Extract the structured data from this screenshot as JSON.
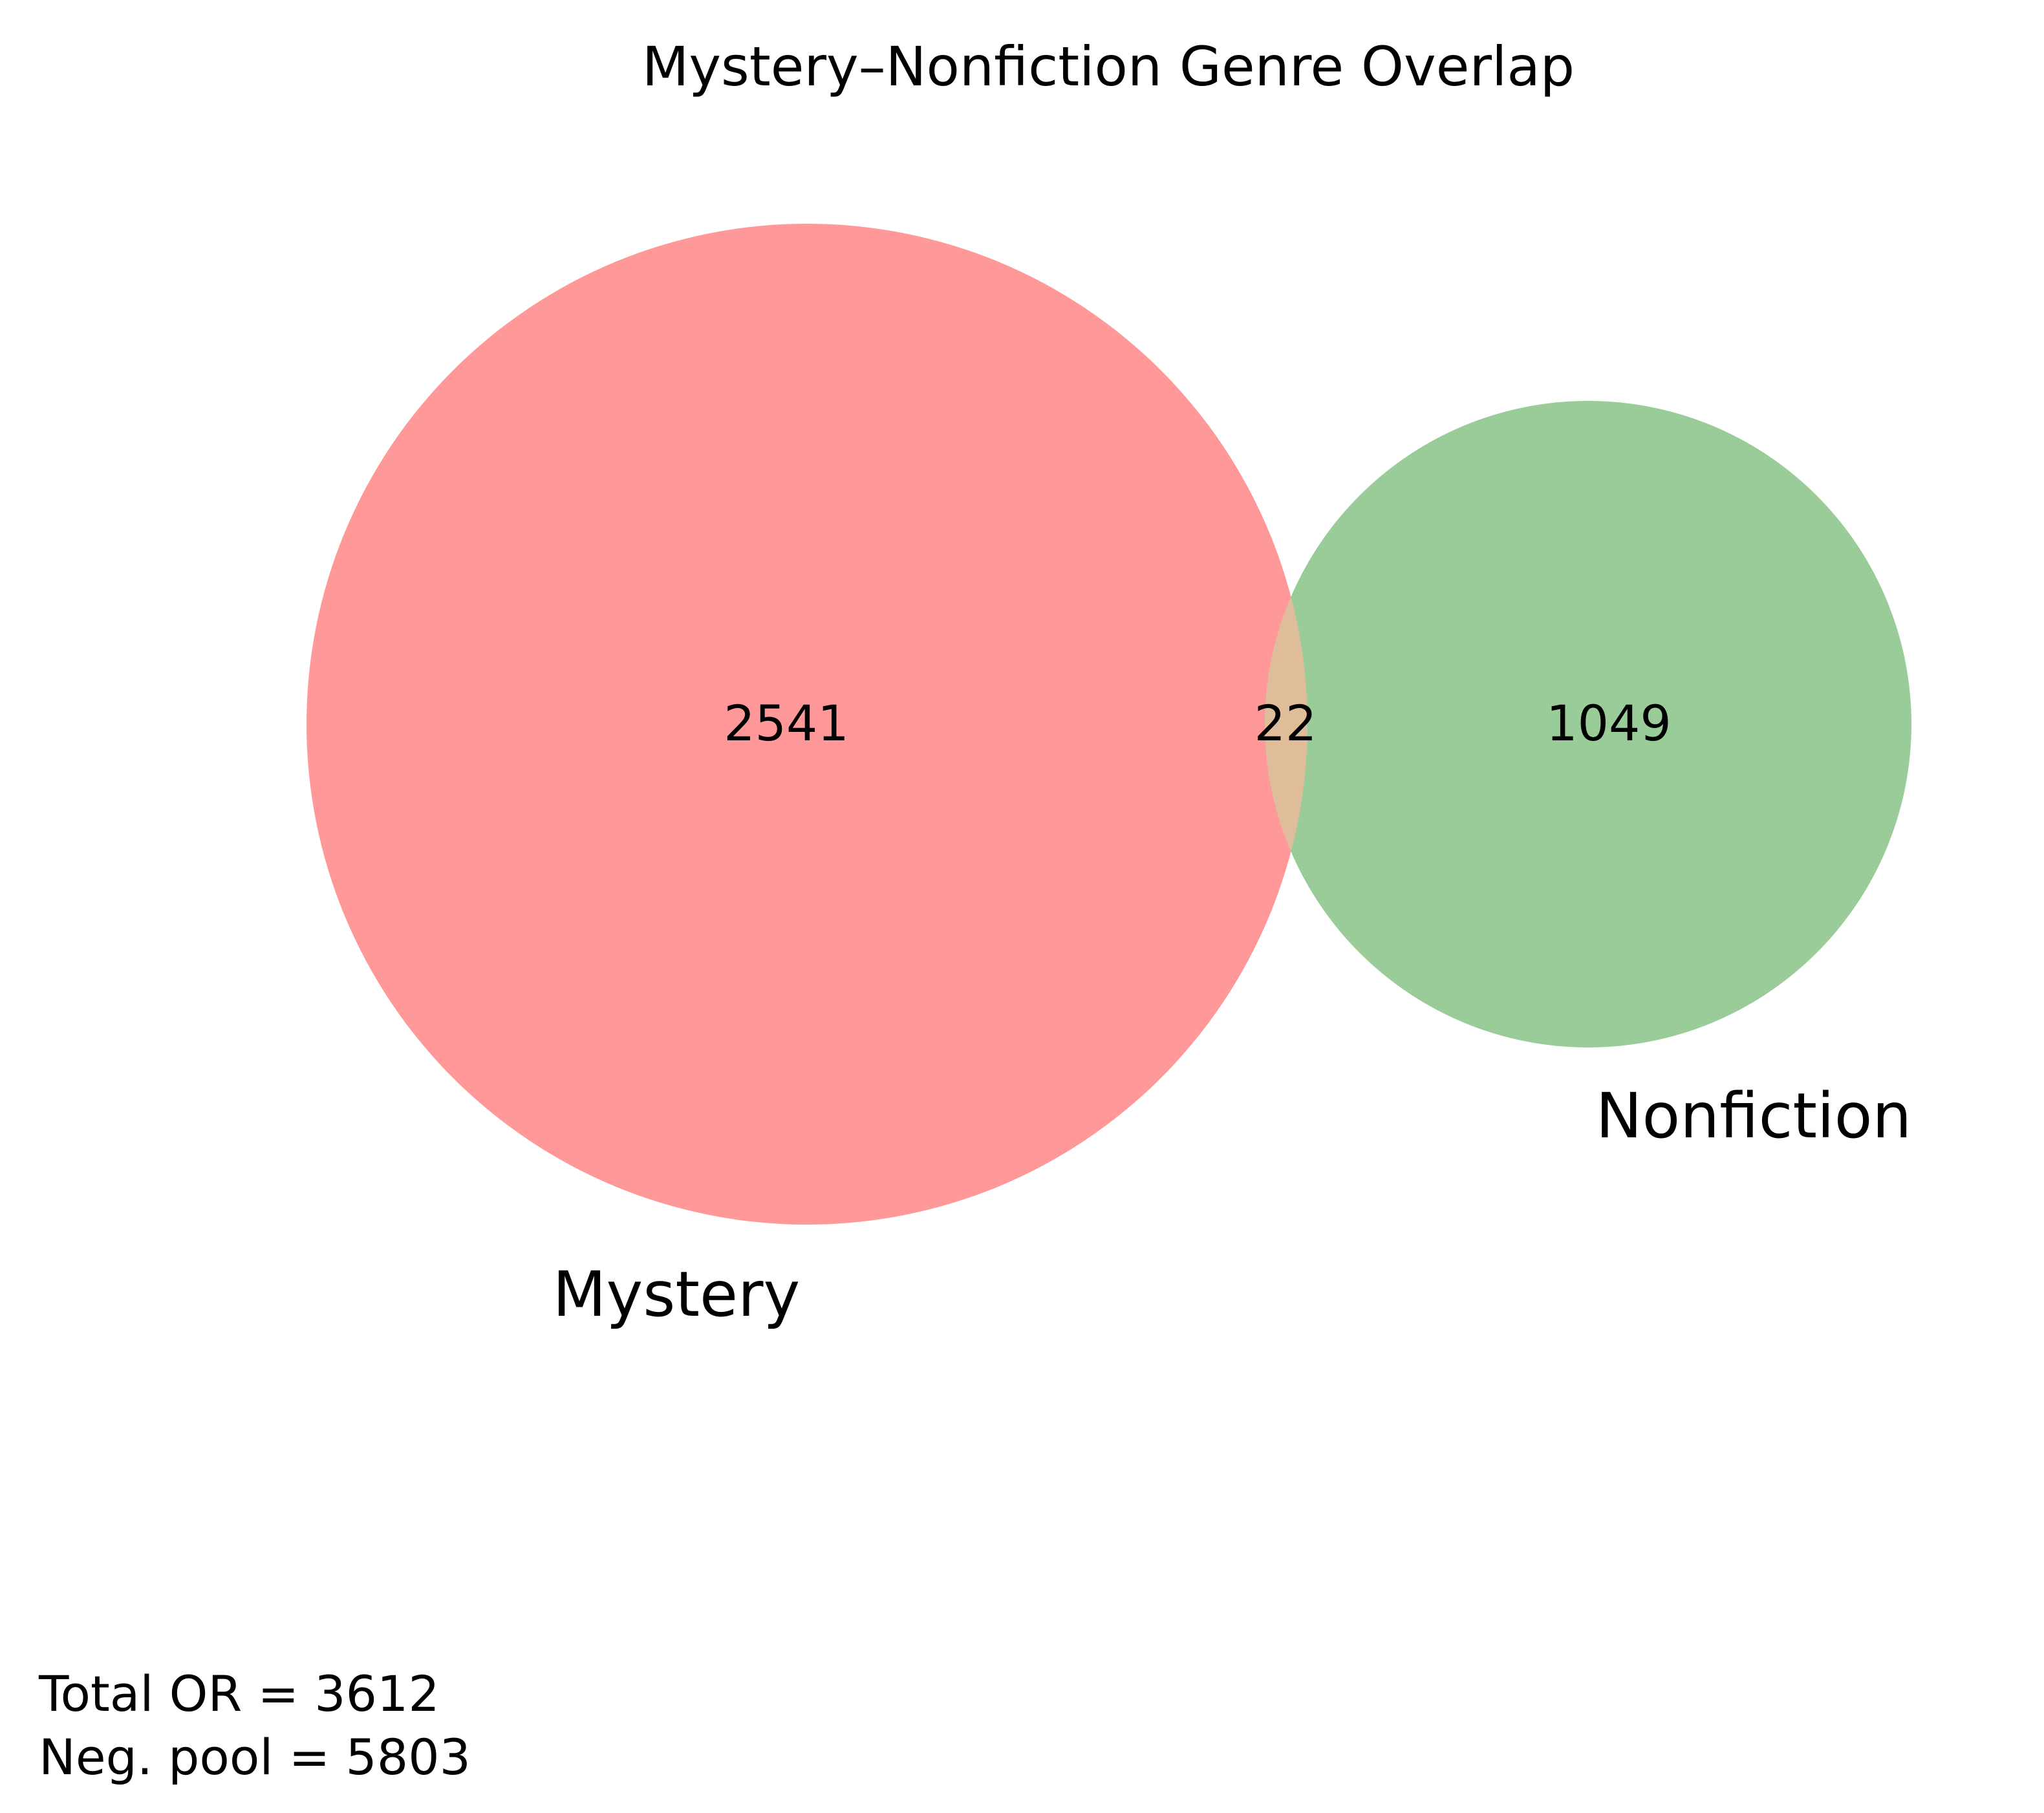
{
  "title": "Mystery–Nonfiction Genre Overlap",
  "sets": [
    {
      "name": "Mystery",
      "color": "#ff9999"
    },
    {
      "name": "Nonfiction",
      "color": "#99cc99"
    }
  ],
  "intersection_color": "#e0bd9a",
  "regions": {
    "mystery_only": "2541",
    "both": "22",
    "nonfiction_only": "1049"
  },
  "footnotes": {
    "total": "Total OR = 3612",
    "neg_pool": "Neg. pool = 5803"
  },
  "chart_data": {
    "type": "venn",
    "title": "Mystery–Nonfiction Genre Overlap",
    "sets": [
      "Mystery",
      "Nonfiction"
    ],
    "values": {
      "Mystery_only": 2541,
      "Mystery_and_Nonfiction": 22,
      "Nonfiction_only": 1049
    },
    "annotations": [
      "Total OR = 3612",
      "Neg. pool = 5803"
    ]
  }
}
